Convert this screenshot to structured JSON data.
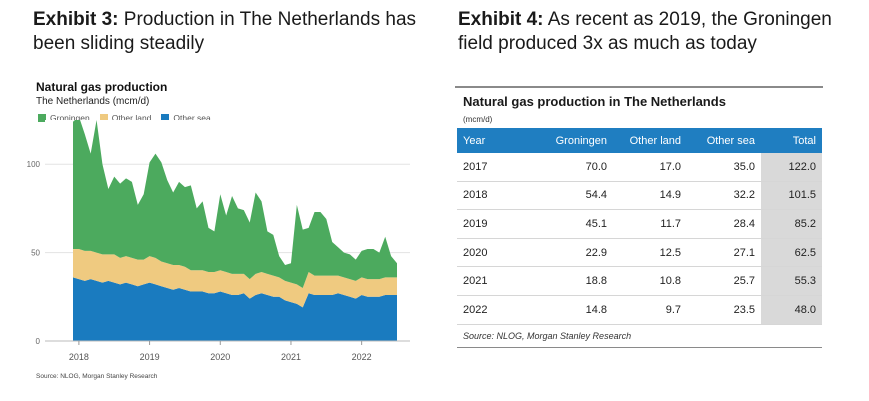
{
  "exhibit3": {
    "label": "Exhibit 3:",
    "title_line1": "Production in The Netherlands has",
    "title_line2": "been sliding steadily"
  },
  "exhibit4": {
    "label": "Exhibit 4:",
    "title_line1": "As recent as 2019, the Groningen",
    "title_line2": "field produced 3x as much as today"
  },
  "chart_data": [
    {
      "type": "area",
      "title": "Natural gas production",
      "subtitle": "The Netherlands (mcm/d)",
      "stacked": true,
      "legend_position": "top-left",
      "legend": [
        "Groningen",
        "Other land",
        "Other sea"
      ],
      "colors": {
        "Groningen": "#4caa5e",
        "Other land": "#efca80",
        "Other sea": "#1a7bbf"
      },
      "ylim": [
        0,
        125
      ],
      "yticks": [
        "0",
        "50",
        "100"
      ],
      "xlabels": [
        "2018",
        "2019",
        "2020",
        "2021",
        "2022"
      ],
      "grid": true,
      "x": [
        "2017-12",
        "2018-01",
        "2018-02",
        "2018-03",
        "2018-04",
        "2018-05",
        "2018-06",
        "2018-07",
        "2018-08",
        "2018-09",
        "2018-10",
        "2018-11",
        "2018-12",
        "2019-01",
        "2019-02",
        "2019-03",
        "2019-04",
        "2019-05",
        "2019-06",
        "2019-07",
        "2019-08",
        "2019-09",
        "2019-10",
        "2019-11",
        "2019-12",
        "2020-01",
        "2020-02",
        "2020-03",
        "2020-04",
        "2020-05",
        "2020-06",
        "2020-07",
        "2020-08",
        "2020-09",
        "2020-10",
        "2020-11",
        "2020-12",
        "2021-01",
        "2021-02",
        "2021-03",
        "2021-04",
        "2021-05",
        "2021-06",
        "2021-07",
        "2021-08",
        "2021-09",
        "2021-10",
        "2021-11",
        "2021-12",
        "2022-01",
        "2022-02",
        "2022-03",
        "2022-04",
        "2022-05",
        "2022-06",
        "2022-07"
      ],
      "series": [
        {
          "name": "Other sea",
          "values": [
            36,
            35,
            34,
            35,
            34,
            33,
            34,
            33,
            32,
            33,
            32,
            31,
            32,
            33,
            32,
            31,
            30,
            29,
            30,
            29,
            28,
            28,
            28,
            27,
            27,
            28,
            27,
            26,
            26,
            27,
            24,
            26,
            27,
            26,
            25,
            25,
            23,
            22,
            21,
            19,
            27,
            26,
            26,
            26,
            26,
            27,
            26,
            25,
            24,
            26,
            25,
            25,
            25,
            26,
            26,
            26
          ]
        },
        {
          "name": "Other land",
          "values": [
            16,
            17,
            17,
            16,
            16,
            16,
            15,
            16,
            15,
            15,
            15,
            15,
            14,
            15,
            15,
            14,
            14,
            14,
            13,
            13,
            12,
            12,
            12,
            12,
            12,
            12,
            12,
            12,
            12,
            11,
            11,
            12,
            12,
            12,
            12,
            11,
            11,
            11,
            11,
            11,
            12,
            11,
            11,
            11,
            11,
            10,
            10,
            10,
            10,
            10,
            10,
            10,
            10,
            10,
            10,
            10
          ]
        },
        {
          "name": "Groningen",
          "values": [
            72,
            75,
            66,
            55,
            75,
            51,
            37,
            44,
            42,
            44,
            43,
            31,
            37,
            53,
            59,
            56,
            47,
            41,
            47,
            45,
            48,
            35,
            39,
            25,
            23,
            43,
            32,
            44,
            37,
            36,
            32,
            46,
            40,
            24,
            23,
            12,
            9,
            11,
            45,
            33,
            25,
            36,
            36,
            32,
            19,
            16,
            14,
            14,
            12,
            15,
            17,
            17,
            15,
            23,
            12,
            8
          ]
        }
      ],
      "source": "Source: NLOG, Morgan Stanley Research"
    },
    {
      "type": "table",
      "title": "Natural gas production in The Netherlands",
      "unit": "(mcm/d)",
      "columns": [
        "Year",
        "Groningen",
        "Other land",
        "Other sea",
        "Total"
      ],
      "rows": [
        [
          "2017",
          "70.0",
          "17.0",
          "35.0",
          "122.0"
        ],
        [
          "2018",
          "54.4",
          "14.9",
          "32.2",
          "101.5"
        ],
        [
          "2019",
          "45.1",
          "11.7",
          "28.4",
          "85.2"
        ],
        [
          "2020",
          "22.9",
          "12.5",
          "27.1",
          "62.5"
        ],
        [
          "2021",
          "18.8",
          "10.8",
          "25.7",
          "55.3"
        ],
        [
          "2022",
          "14.8",
          "9.7",
          "23.5",
          "48.0"
        ]
      ],
      "source": "Source: NLOG, Morgan Stanley Research"
    }
  ]
}
